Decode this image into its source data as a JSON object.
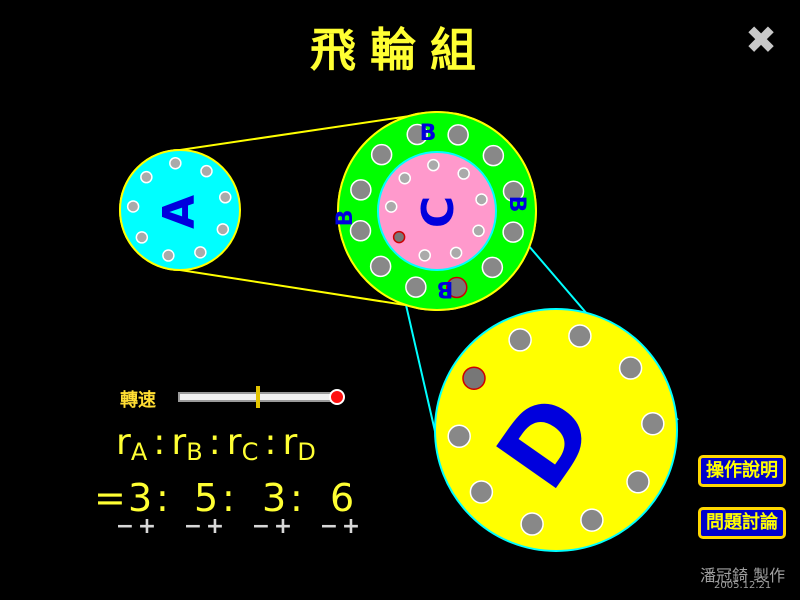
{
  "title": "飛輪組",
  "close_icon": "✖",
  "wheels": {
    "A": {
      "label": "A",
      "color": "#00ffff"
    },
    "B": {
      "label": "B",
      "color": "#00ff00"
    },
    "C": {
      "label": "C",
      "color": "#ff99cc"
    },
    "D": {
      "label": "D",
      "color": "#ffff00"
    }
  },
  "belt_colors": {
    "ab": "#ffff00",
    "cd": "#00ffff"
  },
  "speed": {
    "label": "轉速",
    "value": 0.5
  },
  "ratio": {
    "labels": [
      "r",
      "r",
      "r",
      "r"
    ],
    "subs": [
      "A",
      "B",
      "C",
      "D"
    ],
    "colon": ":",
    "equals": "=",
    "values": [
      "3",
      "5",
      "3",
      "6"
    ],
    "minus": "−",
    "plus": "+"
  },
  "buttons": {
    "instructions": "操作說明",
    "discussion": "問題討論"
  },
  "credit": {
    "author": "潘冠錡 製作",
    "date": "2005.12.21"
  }
}
